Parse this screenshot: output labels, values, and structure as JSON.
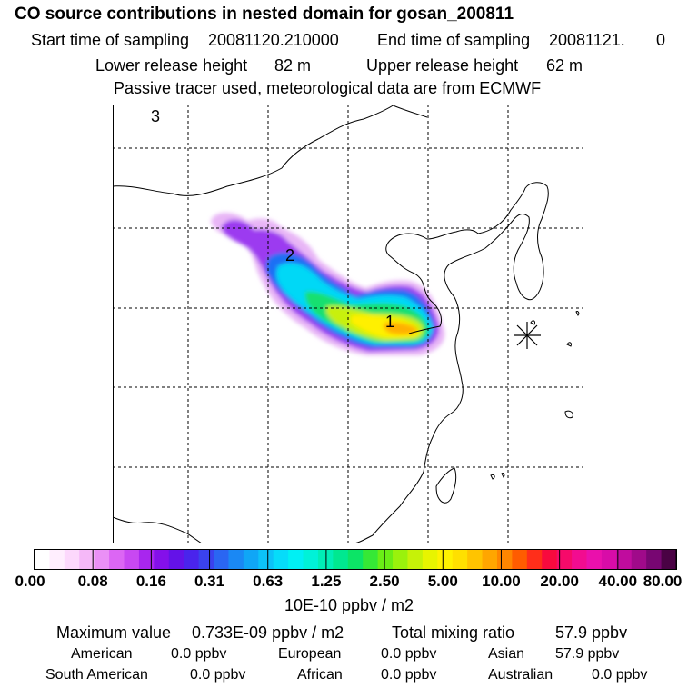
{
  "title": "CO  source contributions in nested domain for gosan_200811",
  "sampling": {
    "start_label": "Start time of sampling",
    "start_value": "20081120.210000",
    "end_label": "End time of sampling",
    "end_value": "20081121.",
    "end_suffix": "0"
  },
  "release": {
    "lower_label": "Lower release height",
    "lower_value": "82 m",
    "upper_label": "Upper release height",
    "upper_value": "62 m"
  },
  "tracer_note": "Passive tracer used, meteorological data are from ECMWF",
  "map": {
    "labels": [
      "1",
      "2",
      "3"
    ],
    "receptor_marker": "asterisk-icon"
  },
  "colorbar": {
    "ticks": [
      "0.00",
      "0.08",
      "0.16",
      "0.31",
      "0.63",
      "1.25",
      "2.50",
      "5.00",
      "10.00",
      "20.00",
      "40.00",
      "80.00"
    ],
    "colors": [
      "#ffffff",
      "#ffeefe",
      "#fcd8fc",
      "#f5b8f8",
      "#ea90f6",
      "#dc66f4",
      "#c848f2",
      "#a826ee",
      "#8410ea",
      "#6412e8",
      "#4a24ec",
      "#3a42ee",
      "#2a66f2",
      "#1a88f4",
      "#10a6f6",
      "#0cc2f8",
      "#06dcfa",
      "#00f0f4",
      "#00f2d8",
      "#00eeb6",
      "#00e890",
      "#0ce466",
      "#36e836",
      "#6aee16",
      "#9af20c",
      "#c6f208",
      "#e8f400",
      "#fff200",
      "#ffe000",
      "#ffc400",
      "#ffa600",
      "#ff8600",
      "#ff5c00",
      "#ff2e1a",
      "#f80a3e",
      "#f60a6a",
      "#f20c90",
      "#ea10ac",
      "#d80ca8",
      "#c00c9e",
      "#a00a8a",
      "#780672",
      "#4a0244"
    ],
    "units": "10E-10 ppbv / m2"
  },
  "summary": {
    "max_label": "Maximum value",
    "max_value": "0.733E-09 ppbv / m2",
    "total_label": "Total mixing ratio",
    "total_value": "57.9 ppbv"
  },
  "regions": [
    {
      "name": "American",
      "value": "0.0 ppbv"
    },
    {
      "name": "European",
      "value": "0.0 ppbv"
    },
    {
      "name": "Asian",
      "value": "57.9 ppbv"
    },
    {
      "name": "South American",
      "value": "0.0 ppbv"
    },
    {
      "name": "African",
      "value": "0.0 ppbv"
    },
    {
      "name": "Australian",
      "value": "0.0 ppbv"
    }
  ]
}
